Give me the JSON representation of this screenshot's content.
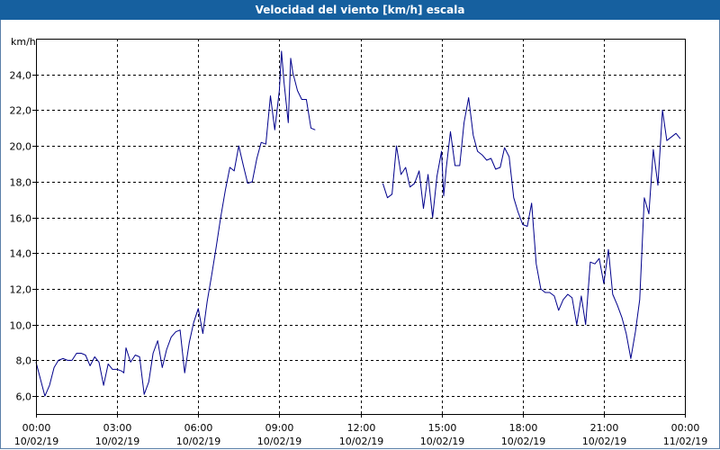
{
  "chart_data": {
    "type": "line",
    "title": "Velocidad del viento [km/h] escala",
    "ylabel": "km/h",
    "ylim": [
      5,
      26
    ],
    "xlim_hours": [
      0,
      24
    ],
    "y_ticks": [
      "6,0",
      "8,0",
      "10,0",
      "12,0",
      "14,0",
      "16,0",
      "18,0",
      "20,0",
      "22,0",
      "24,0"
    ],
    "x_ticks": [
      {
        "time": "00:00",
        "date": "10/02/19"
      },
      {
        "time": "03:00",
        "date": "10/02/19"
      },
      {
        "time": "06:00",
        "date": "10/02/19"
      },
      {
        "time": "09:00",
        "date": "10/02/19"
      },
      {
        "time": "12:00",
        "date": "10/02/19"
      },
      {
        "time": "15:00",
        "date": "10/02/19"
      },
      {
        "time": "18:00",
        "date": "10/02/19"
      },
      {
        "time": "21:00",
        "date": "10/02/19"
      },
      {
        "time": "00:00",
        "date": "11/02/19"
      }
    ],
    "grid": true,
    "line_color": "#00008b",
    "series": [
      {
        "segments": [
          [
            [
              0.0,
              7.9
            ],
            [
              0.33,
              6.0
            ],
            [
              0.5,
              6.6
            ],
            [
              0.67,
              7.6
            ],
            [
              0.83,
              8.0
            ],
            [
              1.0,
              8.1
            ],
            [
              1.17,
              8.0
            ],
            [
              1.33,
              8.0
            ],
            [
              1.5,
              8.4
            ],
            [
              1.67,
              8.4
            ],
            [
              1.83,
              8.3
            ],
            [
              2.0,
              7.7
            ],
            [
              2.17,
              8.2
            ],
            [
              2.33,
              7.9
            ],
            [
              2.5,
              6.6
            ],
            [
              2.67,
              7.8
            ],
            [
              2.83,
              7.5
            ],
            [
              3.0,
              7.5
            ],
            [
              3.17,
              7.4
            ],
            [
              3.25,
              7.3
            ],
            [
              3.33,
              8.7
            ],
            [
              3.5,
              7.9
            ],
            [
              3.67,
              8.3
            ],
            [
              3.83,
              8.2
            ],
            [
              4.0,
              6.1
            ],
            [
              4.17,
              6.8
            ],
            [
              4.33,
              8.4
            ],
            [
              4.5,
              9.1
            ],
            [
              4.67,
              7.6
            ],
            [
              4.83,
              8.6
            ],
            [
              5.0,
              9.3
            ],
            [
              5.17,
              9.6
            ],
            [
              5.33,
              9.7
            ],
            [
              5.5,
              7.3
            ],
            [
              5.67,
              9.0
            ],
            [
              5.83,
              10.1
            ],
            [
              6.0,
              10.9
            ],
            [
              6.17,
              9.5
            ],
            [
              6.33,
              11.3
            ],
            [
              6.5,
              12.8
            ],
            [
              6.67,
              14.4
            ],
            [
              6.83,
              16.0
            ],
            [
              7.0,
              17.5
            ],
            [
              7.17,
              18.8
            ],
            [
              7.33,
              18.6
            ],
            [
              7.5,
              20.0
            ],
            [
              7.67,
              18.9
            ],
            [
              7.83,
              17.9
            ],
            [
              8.0,
              18.0
            ],
            [
              8.17,
              19.3
            ],
            [
              8.33,
              20.2
            ],
            [
              8.5,
              20.1
            ],
            [
              8.67,
              22.8
            ],
            [
              8.83,
              20.9
            ],
            [
              9.0,
              23.1
            ],
            [
              9.08,
              25.3
            ],
            [
              9.17,
              23.6
            ],
            [
              9.33,
              21.3
            ],
            [
              9.42,
              24.9
            ],
            [
              9.5,
              24.1
            ],
            [
              9.67,
              23.1
            ],
            [
              9.83,
              22.6
            ],
            [
              10.0,
              22.6
            ],
            [
              10.17,
              21.0
            ],
            [
              10.33,
              20.9
            ]
          ],
          [
            [
              12.83,
              17.9
            ],
            [
              13.0,
              17.1
            ],
            [
              13.17,
              17.3
            ],
            [
              13.33,
              20.0
            ],
            [
              13.5,
              18.4
            ],
            [
              13.67,
              18.8
            ],
            [
              13.83,
              17.7
            ],
            [
              14.0,
              17.9
            ],
            [
              14.17,
              18.6
            ],
            [
              14.33,
              16.5
            ],
            [
              14.5,
              18.4
            ],
            [
              14.67,
              16.0
            ],
            [
              14.83,
              18.3
            ],
            [
              15.0,
              19.7
            ],
            [
              15.08,
              17.2
            ],
            [
              15.17,
              18.7
            ],
            [
              15.33,
              20.8
            ],
            [
              15.5,
              18.9
            ],
            [
              15.67,
              18.9
            ],
            [
              15.83,
              21.3
            ],
            [
              16.0,
              22.7
            ],
            [
              16.17,
              20.6
            ],
            [
              16.33,
              19.7
            ],
            [
              16.5,
              19.5
            ],
            [
              16.67,
              19.2
            ],
            [
              16.83,
              19.3
            ],
            [
              17.0,
              18.7
            ],
            [
              17.17,
              18.8
            ],
            [
              17.33,
              19.9
            ],
            [
              17.5,
              19.4
            ],
            [
              17.67,
              17.1
            ],
            [
              17.83,
              16.3
            ],
            [
              18.0,
              15.6
            ],
            [
              18.17,
              15.5
            ],
            [
              18.33,
              16.8
            ],
            [
              18.5,
              13.4
            ],
            [
              18.67,
              12.0
            ],
            [
              18.83,
              11.8
            ],
            [
              19.0,
              11.8
            ],
            [
              19.17,
              11.6
            ],
            [
              19.33,
              10.8
            ],
            [
              19.5,
              11.4
            ],
            [
              19.67,
              11.7
            ],
            [
              19.83,
              11.5
            ],
            [
              20.0,
              10.0
            ],
            [
              20.17,
              11.6
            ],
            [
              20.33,
              10.0
            ],
            [
              20.5,
              13.5
            ],
            [
              20.67,
              13.4
            ],
            [
              20.83,
              13.7
            ],
            [
              21.0,
              12.3
            ],
            [
              21.17,
              14.2
            ],
            [
              21.33,
              11.7
            ],
            [
              21.5,
              11.1
            ],
            [
              21.67,
              10.4
            ],
            [
              21.83,
              9.5
            ],
            [
              22.0,
              8.1
            ],
            [
              22.17,
              9.6
            ],
            [
              22.33,
              11.4
            ],
            [
              22.5,
              17.1
            ],
            [
              22.67,
              16.2
            ],
            [
              22.83,
              19.8
            ],
            [
              23.0,
              17.8
            ],
            [
              23.17,
              22.0
            ],
            [
              23.33,
              20.3
            ],
            [
              23.5,
              20.5
            ],
            [
              23.67,
              20.7
            ],
            [
              23.83,
              20.4
            ]
          ]
        ]
      }
    ]
  }
}
